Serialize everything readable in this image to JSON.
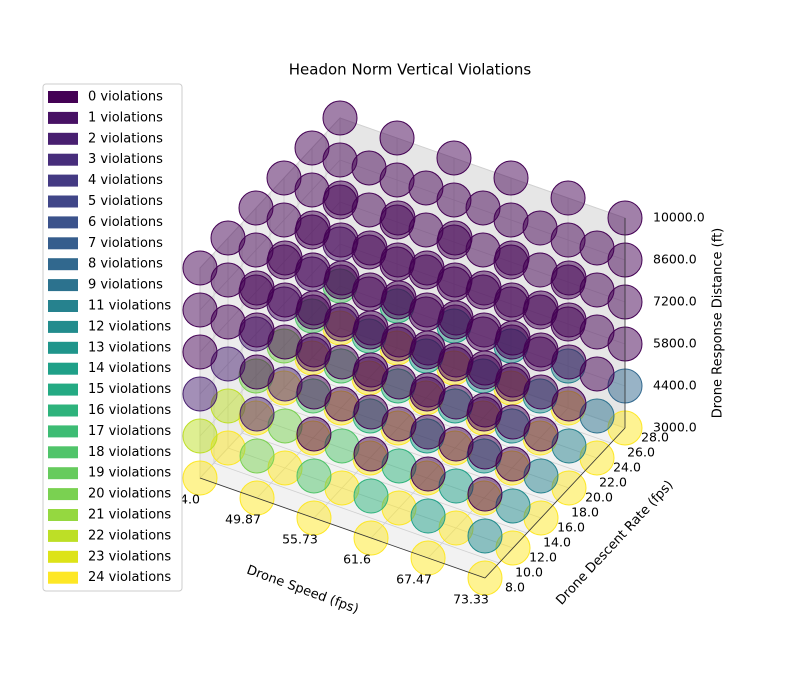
{
  "chart_data": {
    "type": "scatter3d",
    "title": "Headon Norm Vertical Violations",
    "xlabel": "Drone Speed (fps)",
    "ylabel": "Drone Descent Rate (fps)",
    "zlabel": "Drone Response Distance (ft)",
    "xlim": [
      44,
      73.33
    ],
    "ylim": [
      8,
      28
    ],
    "zlim": [
      3000,
      10000
    ],
    "xticks": [
      {
        "value": 44,
        "label": "44.0"
      },
      49.87,
      55.73,
      61.6,
      67.47,
      73.33
    ],
    "yticks": [
      {
        "value": 8,
        "label": "8.0"
      },
      {
        "value": 10,
        "label": "10.0"
      },
      {
        "value": 12,
        "label": "12.0"
      },
      {
        "value": 14,
        "label": "14.0"
      },
      {
        "value": 16,
        "label": "16.0"
      },
      {
        "value": 18,
        "label": "18.0"
      },
      {
        "value": 20,
        "label": "20.0"
      },
      {
        "value": 22,
        "label": "22.0"
      },
      {
        "value": 24,
        "label": "24.0"
      },
      {
        "value": 26,
        "label": "26.0"
      },
      {
        "value": 28,
        "label": "28.0"
      }
    ],
    "zticks": [
      {
        "value": 3000,
        "label": "3000.0"
      },
      {
        "value": 4400,
        "label": "4400.0"
      },
      {
        "value": 5800,
        "label": "5800.0"
      },
      {
        "value": 7200,
        "label": "7200.0"
      },
      {
        "value": 8600,
        "label": "8600.0"
      },
      {
        "value": 10000,
        "label": "10000.0"
      }
    ],
    "x": [
      44,
      49.87,
      55.73,
      61.6,
      67.47,
      73.33
    ],
    "y": [
      8,
      12,
      16,
      20,
      24,
      28
    ],
    "z": [
      3000,
      4400,
      5800,
      7200,
      8600,
      10000
    ],
    "violations": [
      [
        [
          24,
          22,
          2,
          0,
          0,
          0
        ],
        [
          24,
          22,
          2,
          0,
          0,
          0
        ],
        [
          24,
          20,
          2,
          0,
          0,
          0
        ],
        [
          24,
          20,
          1,
          0,
          0,
          0
        ],
        [
          24,
          18,
          1,
          0,
          0,
          0
        ],
        [
          24,
          18,
          1,
          0,
          0,
          0
        ]
      ],
      [
        [
          24,
          20,
          2,
          0,
          0,
          0
        ],
        [
          24,
          20,
          2,
          0,
          0,
          0
        ],
        [
          24,
          18,
          1,
          0,
          0,
          0
        ],
        [
          24,
          18,
          1,
          0,
          0,
          0
        ],
        [
          24,
          16,
          0,
          0,
          0,
          0
        ],
        [
          24,
          16,
          0,
          0,
          0,
          0
        ]
      ],
      [
        [
          24,
          18,
          0,
          0,
          0,
          0
        ],
        [
          24,
          18,
          0,
          0,
          0,
          0
        ],
        [
          24,
          16,
          0,
          0,
          0,
          0
        ],
        [
          24,
          16,
          0,
          0,
          0,
          0
        ],
        [
          24,
          14,
          0,
          0,
          0,
          0
        ],
        [
          24,
          14,
          0,
          0,
          0,
          0
        ]
      ],
      [
        [
          24,
          16,
          0,
          0,
          0,
          0
        ],
        [
          24,
          16,
          0,
          0,
          0,
          0
        ],
        [
          24,
          14,
          0,
          0,
          0,
          0
        ],
        [
          24,
          14,
          0,
          0,
          0,
          0
        ],
        [
          24,
          13,
          0,
          0,
          0,
          0
        ],
        [
          24,
          12,
          0,
          0,
          0,
          0
        ]
      ],
      [
        [
          24,
          14,
          0,
          0,
          0,
          0
        ],
        [
          24,
          14,
          0,
          0,
          0,
          0
        ],
        [
          24,
          13,
          0,
          0,
          0,
          0
        ],
        [
          24,
          12,
          0,
          0,
          0,
          0
        ],
        [
          24,
          12,
          0,
          0,
          0,
          0
        ],
        [
          24,
          11,
          0,
          0,
          0,
          0
        ]
      ],
      [
        [
          24,
          12,
          0,
          0,
          0,
          0
        ],
        [
          24,
          12,
          0,
          0,
          0,
          0
        ],
        [
          24,
          11,
          0,
          0,
          0,
          0
        ],
        [
          24,
          11,
          0,
          0,
          0,
          0
        ],
        [
          24,
          9,
          0,
          0,
          0,
          0
        ],
        [
          24,
          8,
          0,
          0,
          0,
          0
        ]
      ]
    ],
    "opacity": 0.5,
    "legend": [
      {
        "name": "0 violations",
        "value": 0,
        "color": "#440154"
      },
      {
        "name": "1 violations",
        "value": 1,
        "color": "#471164"
      },
      {
        "name": "2 violations",
        "value": 2,
        "color": "#481f70"
      },
      {
        "name": "3 violations",
        "value": 3,
        "color": "#472d7b"
      },
      {
        "name": "4 violations",
        "value": 4,
        "color": "#443a83"
      },
      {
        "name": "5 violations",
        "value": 5,
        "color": "#404688"
      },
      {
        "name": "6 violations",
        "value": 6,
        "color": "#3b528b"
      },
      {
        "name": "7 violations",
        "value": 7,
        "color": "#365d8d"
      },
      {
        "name": "8 violations",
        "value": 8,
        "color": "#31688e"
      },
      {
        "name": "9 violations",
        "value": 9,
        "color": "#2c728e"
      },
      {
        "name": "11 violations",
        "value": 11,
        "color": "#26828e"
      },
      {
        "name": "12 violations",
        "value": 12,
        "color": "#228c8d"
      },
      {
        "name": "13 violations",
        "value": 13,
        "color": "#1f958b"
      },
      {
        "name": "14 violations",
        "value": 14,
        "color": "#1fa088"
      },
      {
        "name": "15 violations",
        "value": 15,
        "color": "#24aa83"
      },
      {
        "name": "16 violations",
        "value": 16,
        "color": "#2eb37c"
      },
      {
        "name": "17 violations",
        "value": 17,
        "color": "#3dbc74"
      },
      {
        "name": "18 violations",
        "value": 18,
        "color": "#50c46a"
      },
      {
        "name": "19 violations",
        "value": 19,
        "color": "#66cb5d"
      },
      {
        "name": "20 violations",
        "value": 20,
        "color": "#7ad151"
      },
      {
        "name": "21 violations",
        "value": 21,
        "color": "#95d840"
      },
      {
        "name": "22 violations",
        "value": 22,
        "color": "#bddf26"
      },
      {
        "name": "23 violations",
        "value": 23,
        "color": "#dde318"
      },
      {
        "name": "24 violations",
        "value": 24,
        "color": "#fde725"
      }
    ]
  }
}
